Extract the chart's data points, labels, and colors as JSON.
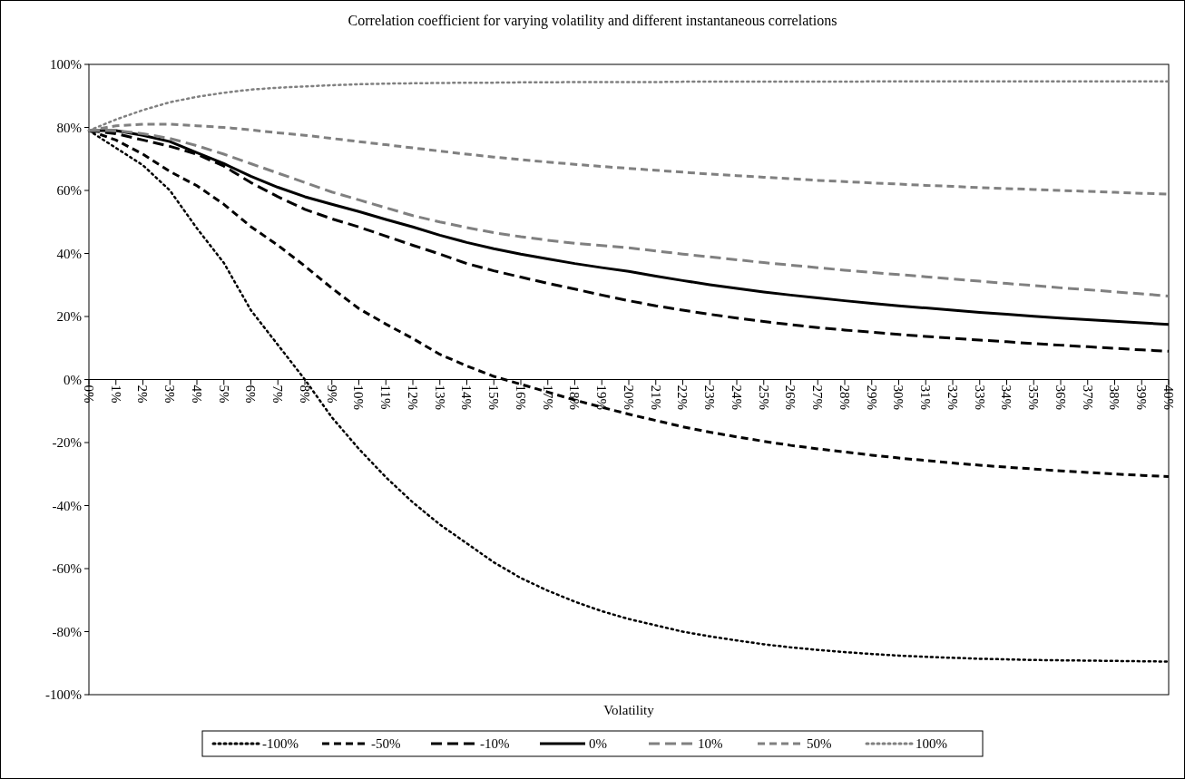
{
  "chart_data": {
    "type": "line",
    "title": "Correlation coefficient for varying volatility and different instantaneous correlations",
    "xlabel": "Volatility",
    "categories": [
      "0%",
      "1%",
      "2%",
      "3%",
      "4%",
      "5%",
      "6%",
      "7%",
      "8%",
      "9%",
      "10%",
      "11%",
      "12%",
      "13%",
      "14%",
      "15%",
      "16%",
      "17%",
      "18%",
      "19%",
      "20%",
      "21%",
      "22%",
      "23%",
      "24%",
      "25%",
      "26%",
      "27%",
      "28%",
      "29%",
      "30%",
      "31%",
      "32%",
      "33%",
      "34%",
      "35%",
      "36%",
      "37%",
      "38%",
      "39%",
      "40%"
    ],
    "ylim": [
      -100,
      100
    ],
    "yticks": [
      {
        "value": -100,
        "label": "-100%"
      },
      {
        "value": -80,
        "label": "-80%"
      },
      {
        "value": -60,
        "label": "-60%"
      },
      {
        "value": -40,
        "label": "-40%"
      },
      {
        "value": -20,
        "label": "-20%"
      },
      {
        "value": 0,
        "label": "0%"
      },
      {
        "value": 20,
        "label": "20%"
      },
      {
        "value": 40,
        "label": "40%"
      },
      {
        "value": 60,
        "label": "60%"
      },
      {
        "value": 80,
        "label": "80%"
      },
      {
        "value": 100,
        "label": "100%"
      }
    ],
    "grid": false,
    "legend": "bottom",
    "marker": "none",
    "series": [
      {
        "name": "-100%",
        "color": "#000000",
        "line_style": "dotted",
        "values": [
          79,
          73.5,
          68,
          60,
          48,
          37,
          22,
          11,
          0,
          -12,
          -22,
          -31,
          -39,
          -46,
          -52,
          -58,
          -63,
          -67,
          -70.5,
          -73.5,
          -76,
          -78,
          -80,
          -81.5,
          -82.8,
          -84,
          -85,
          -85.8,
          -86.5,
          -87.1,
          -87.6,
          -88,
          -88.3,
          -88.6,
          -88.8,
          -89,
          -89.1,
          -89.2,
          -89.3,
          -89.4,
          -89.5
        ]
      },
      {
        "name": "-50%",
        "color": "#000000",
        "line_style": "dashed",
        "values": [
          79,
          76,
          71.5,
          66,
          61.5,
          55.6,
          48.5,
          42.6,
          36,
          29,
          22.5,
          17.6,
          13,
          8,
          4.3,
          1,
          -1.5,
          -4,
          -6.5,
          -8.8,
          -11,
          -13,
          -15,
          -16.7,
          -18.2,
          -19.6,
          -20.9,
          -22,
          -23,
          -24,
          -24.9,
          -25.7,
          -26.5,
          -27.2,
          -27.8,
          -28.4,
          -29,
          -29.5,
          -30,
          -30.4,
          -30.8
        ]
      },
      {
        "name": "-10%",
        "color": "#000000",
        "line_style": "dashed",
        "values": [
          79,
          78,
          76,
          74,
          71.5,
          67.7,
          62.5,
          58,
          54,
          51,
          48.4,
          45.5,
          42.6,
          39.8,
          36.8,
          34.5,
          32.5,
          30.5,
          28.7,
          26.8,
          25,
          23.4,
          22,
          20.7,
          19.5,
          18.4,
          17.4,
          16.5,
          15.7,
          15,
          14.3,
          13.7,
          13.1,
          12.5,
          12,
          11.4,
          10.9,
          10.4,
          9.9,
          9.4,
          9
        ]
      },
      {
        "name": "0%",
        "color": "#000000",
        "line_style": "solid",
        "values": [
          79,
          79,
          77.5,
          75.5,
          72,
          68.5,
          64.5,
          61,
          58,
          55.6,
          53.3,
          50.8,
          48.4,
          45.8,
          43.5,
          41.5,
          39.8,
          38.3,
          36.8,
          35.5,
          34.3,
          32.8,
          31.4,
          30.1,
          28.9,
          27.8,
          26.8,
          25.9,
          25,
          24.2,
          23.4,
          22.7,
          22,
          21.3,
          20.7,
          20.1,
          19.5,
          19,
          18.5,
          18,
          17.5
        ]
      },
      {
        "name": "10%",
        "color": "#808080",
        "line_style": "dashed",
        "values": [
          79,
          79,
          78,
          76.5,
          74.2,
          71.5,
          68.5,
          65.5,
          62.5,
          59.5,
          57,
          54.5,
          52,
          50,
          48.2,
          46.6,
          45.3,
          44.2,
          43.2,
          42.5,
          41.8,
          40.8,
          39.8,
          38.9,
          38,
          37.1,
          36.3,
          35.5,
          34.7,
          34,
          33.3,
          32.6,
          31.9,
          31.2,
          30.5,
          29.8,
          29.1,
          28.5,
          27.8,
          27.2,
          26.5
        ]
      },
      {
        "name": "50%",
        "color": "#808080",
        "line_style": "dashed",
        "values": [
          79,
          80.5,
          81,
          81,
          80.5,
          80,
          79.2,
          78.3,
          77.5,
          76.5,
          75.5,
          74.5,
          73.5,
          72.5,
          71.5,
          70.6,
          69.8,
          69,
          68.3,
          67.6,
          67,
          66.4,
          65.8,
          65.2,
          64.7,
          64.2,
          63.7,
          63.2,
          62.8,
          62.4,
          62,
          61.6,
          61.3,
          60.9,
          60.6,
          60.3,
          60,
          59.7,
          59.4,
          59.1,
          58.8
        ]
      },
      {
        "name": "100%",
        "color": "#808080",
        "line_style": "dotted",
        "values": [
          79,
          82.5,
          85.5,
          88,
          89.7,
          91,
          92,
          92.6,
          93,
          93.4,
          93.7,
          93.9,
          94,
          94.1,
          94.2,
          94.2,
          94.3,
          94.3,
          94.4,
          94.4,
          94.4,
          94.4,
          94.5,
          94.5,
          94.5,
          94.5,
          94.5,
          94.5,
          94.5,
          94.6,
          94.6,
          94.6,
          94.6,
          94.6,
          94.6,
          94.6,
          94.6,
          94.6,
          94.6,
          94.6,
          94.6
        ]
      }
    ]
  }
}
